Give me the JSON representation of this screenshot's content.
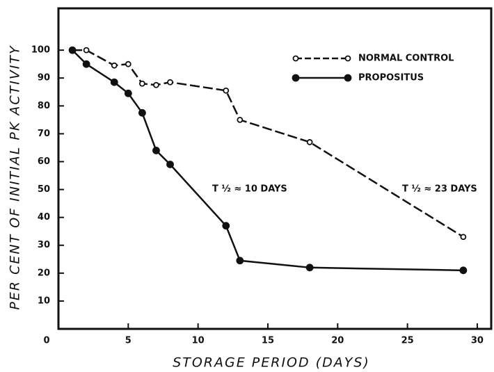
{
  "chart_data": {
    "type": "line",
    "x_label": "STORAGE PERIOD (DAYS)",
    "y_label": "PER CENT OF INITIAL PK ACTIVITY",
    "x": [
      1,
      2,
      4,
      5,
      6,
      7,
      8,
      12,
      13,
      18,
      29
    ],
    "series": [
      {
        "name": "NORMAL CONTROL",
        "color": "#111111",
        "dashed": true,
        "marker": "open",
        "values": [
          100,
          100,
          94.5,
          95,
          88,
          87.5,
          88.5,
          85.5,
          75,
          67,
          33
        ]
      },
      {
        "name": "PROPOSITUS",
        "color": "#111111",
        "dashed": false,
        "marker": "filled",
        "values": [
          100,
          95,
          88.5,
          84.5,
          77.5,
          64,
          59,
          37,
          24.5,
          22,
          21
        ]
      }
    ],
    "annotations": [
      "T ½ ≈ 10 DAYS",
      "T ½ ≈ 23 DAYS"
    ],
    "xlim": [
      0,
      31
    ],
    "xticks": [
      0,
      5,
      10,
      15,
      20,
      25,
      30
    ],
    "ylim": [
      0,
      115
    ],
    "yticks": [
      10,
      20,
      30,
      40,
      50,
      60,
      70,
      80,
      90,
      100
    ],
    "grid": false,
    "legend": "upper right"
  }
}
